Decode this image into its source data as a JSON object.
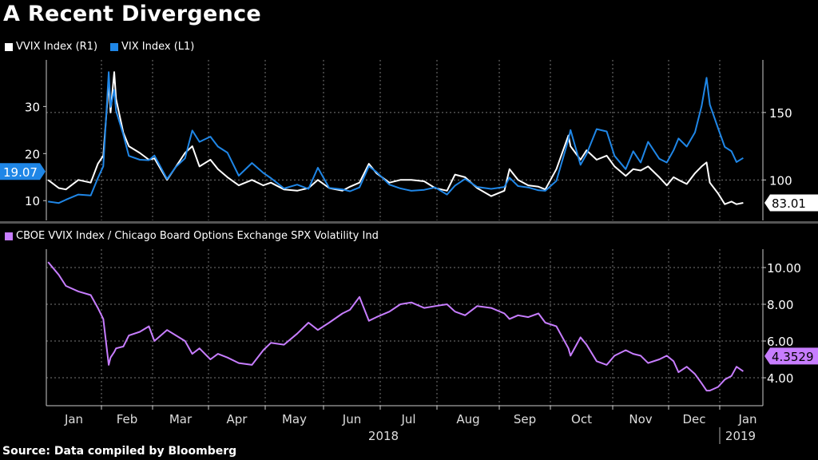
{
  "title": "A Recent Divergence",
  "footer": "Source: Data compiled by Bloomberg",
  "colors": {
    "vvix": "#ffffff",
    "vix": "#1f86e6",
    "ratio": "#c77dff",
    "background": "#000000",
    "grid": "#777777",
    "separator": "#555555"
  },
  "chart_data": [
    {
      "type": "line",
      "panel": "top",
      "legend": [
        {
          "label": "VVIX Index (R1)",
          "color": "#ffffff"
        },
        {
          "label": "VIX Index (L1)",
          "color": "#1f86e6"
        }
      ],
      "legend_placement": "top-left",
      "grid": true,
      "x": [
        "2018-01-02",
        "2018-01-08",
        "2018-01-12",
        "2018-01-19",
        "2018-01-26",
        "2018-01-30",
        "2018-02-02",
        "2018-02-05",
        "2018-02-06",
        "2018-02-08",
        "2018-02-09",
        "2018-02-13",
        "2018-02-16",
        "2018-02-22",
        "2018-02-27",
        "2018-03-02",
        "2018-03-09",
        "2018-03-14",
        "2018-03-19",
        "2018-03-23",
        "2018-03-27",
        "2018-04-02",
        "2018-04-06",
        "2018-04-11",
        "2018-04-17",
        "2018-04-24",
        "2018-04-30",
        "2018-05-04",
        "2018-05-11",
        "2018-05-18",
        "2018-05-24",
        "2018-05-29",
        "2018-06-04",
        "2018-06-11",
        "2018-06-15",
        "2018-06-20",
        "2018-06-25",
        "2018-06-29",
        "2018-07-06",
        "2018-07-12",
        "2018-07-18",
        "2018-07-25",
        "2018-07-31",
        "2018-08-06",
        "2018-08-10",
        "2018-08-15",
        "2018-08-21",
        "2018-08-28",
        "2018-09-04",
        "2018-09-07",
        "2018-09-12",
        "2018-09-18",
        "2018-09-24",
        "2018-09-28",
        "2018-10-04",
        "2018-10-10",
        "2018-10-11",
        "2018-10-16",
        "2018-10-19",
        "2018-10-24",
        "2018-10-29",
        "2018-11-02",
        "2018-11-08",
        "2018-11-12",
        "2018-11-16",
        "2018-11-20",
        "2018-11-26",
        "2018-11-30",
        "2018-12-04",
        "2018-12-07",
        "2018-12-12",
        "2018-12-17",
        "2018-12-21",
        "2018-12-24",
        "2018-12-26",
        "2018-12-31",
        "2019-01-04",
        "2019-01-08",
        "2019-01-11",
        "2019-01-15"
      ],
      "series": [
        {
          "name": "VIX Index (L1)",
          "axis": "left",
          "last_value_label": "19.07",
          "values": [
            9.8,
            9.5,
            10.2,
            11.3,
            11.1,
            14.8,
            17.3,
            37.3,
            29.9,
            33.5,
            29.1,
            24.0,
            19.5,
            18.7,
            18.6,
            19.6,
            14.6,
            17.2,
            19.0,
            24.9,
            22.5,
            23.6,
            21.5,
            20.2,
            15.3,
            18.0,
            15.9,
            14.8,
            12.6,
            13.4,
            12.5,
            17.0,
            12.7,
            12.4,
            12.0,
            12.8,
            17.3,
            16.1,
            13.4,
            12.6,
            12.1,
            12.3,
            12.8,
            11.3,
            13.2,
            14.6,
            12.9,
            12.5,
            12.9,
            14.9,
            13.1,
            12.8,
            12.2,
            12.1,
            14.2,
            23.0,
            25.0,
            17.6,
            19.9,
            25.2,
            24.7,
            19.5,
            16.7,
            20.5,
            18.1,
            22.5,
            18.9,
            18.1,
            20.7,
            23.2,
            21.5,
            24.5,
            30.1,
            36.1,
            30.4,
            25.4,
            21.4,
            20.5,
            18.2,
            19.07
          ]
        },
        {
          "name": "VVIX Index (R1)",
          "axis": "right",
          "last_value_label": "83.01",
          "values": [
            100,
            94,
            93,
            100,
            98,
            112,
            118,
            172,
            150,
            180,
            160,
            135,
            125,
            120,
            115,
            116,
            100,
            110,
            120,
            125,
            110,
            115,
            108,
            102,
            96,
            100,
            96,
            98,
            93,
            92,
            94,
            100,
            94,
            92,
            95,
            98,
            112,
            105,
            98,
            100,
            100,
            99,
            94,
            92,
            104,
            102,
            94,
            88,
            92,
            108,
            100,
            96,
            95,
            93,
            108,
            133,
            125,
            115,
            122,
            115,
            118,
            110,
            103,
            108,
            107,
            110,
            102,
            96,
            102,
            100,
            97,
            105,
            110,
            113,
            98,
            90,
            82,
            84,
            82,
            83.01
          ]
        }
      ],
      "left_axis": {
        "ticks": [
          "30",
          "20",
          "10"
        ],
        "range": [
          5.8,
          39.9
        ]
      },
      "right_axis": {
        "ticks": [
          "150",
          "100"
        ],
        "range": [
          70,
          189
        ]
      }
    },
    {
      "type": "line",
      "panel": "bottom",
      "legend": [
        {
          "label": "CBOE VVIX Index / Chicago Board Options Exchange SPX Volatility Ind",
          "color": "#c77dff"
        }
      ],
      "legend_placement": "top-left",
      "grid": true,
      "series": [
        {
          "axis": "right",
          "last_value_label": "4.3529",
          "values": [
            10.3,
            9.6,
            9.0,
            8.7,
            8.5,
            7.8,
            7.2,
            4.7,
            5.1,
            5.4,
            5.6,
            5.7,
            6.3,
            6.5,
            6.8,
            6.0,
            6.6,
            6.3,
            6.0,
            5.3,
            5.6,
            5.0,
            5.3,
            5.1,
            4.8,
            4.7,
            5.5,
            5.9,
            5.8,
            6.4,
            7.0,
            6.6,
            7.0,
            7.5,
            7.7,
            8.4,
            7.1,
            7.3,
            7.6,
            8.0,
            8.1,
            7.8,
            7.9,
            8.0,
            7.6,
            7.4,
            7.9,
            7.8,
            7.5,
            7.2,
            7.4,
            7.3,
            7.5,
            7.0,
            6.8,
            5.6,
            5.2,
            6.2,
            5.8,
            4.9,
            4.7,
            5.2,
            5.5,
            5.3,
            5.2,
            4.8,
            5.0,
            5.2,
            4.9,
            4.3,
            4.6,
            4.2,
            3.7,
            3.3,
            3.3,
            3.5,
            3.9,
            4.1,
            4.6,
            4.3529
          ]
        }
      ],
      "right_axis": {
        "ticks": [
          "10.00",
          "8.00",
          "6.00",
          "4.00"
        ],
        "range": [
          2.48,
          11.0
        ]
      }
    }
  ],
  "x_axis": {
    "months": [
      "Jan",
      "Feb",
      "Mar",
      "Apr",
      "May",
      "Jun",
      "Jul",
      "Aug",
      "Sep",
      "Oct",
      "Nov",
      "Dec",
      "Jan"
    ],
    "years": [
      "2018",
      "2019"
    ]
  }
}
